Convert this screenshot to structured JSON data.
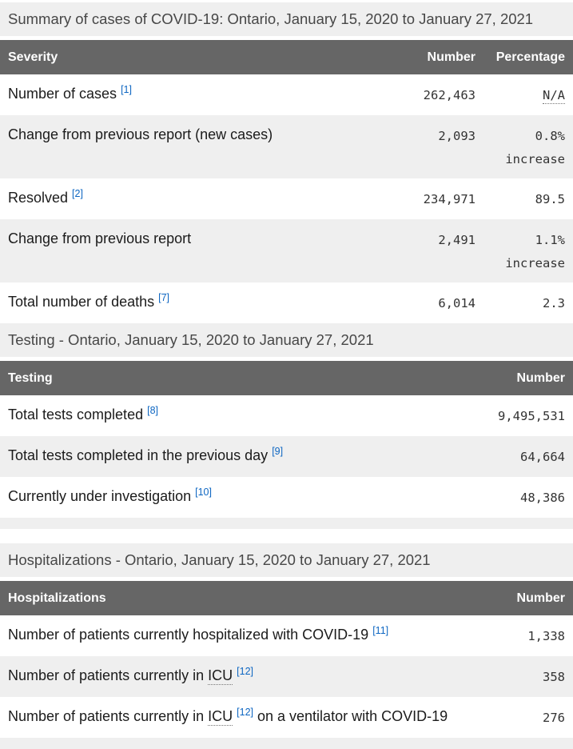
{
  "colors": {
    "caption_bg": "#efefef",
    "caption_text": "#474747",
    "header_bg": "#666666",
    "header_text": "#ffffff",
    "stripe_bg": "#efefef",
    "label_text": "#1b1b1b",
    "number_text": "#333333",
    "link": "#0d66c2"
  },
  "tables": [
    {
      "name": "summary-of-cases",
      "caption": "Summary of cases of COVID-19: Ontario, January 15, 2020 to January 27, 2021",
      "headers": [
        {
          "label": "Severity",
          "align": "left",
          "kind": "label"
        },
        {
          "label": "Number",
          "align": "right",
          "kind": "num1"
        },
        {
          "label": "Percentage",
          "align": "right",
          "kind": "pct"
        }
      ],
      "rows": [
        {
          "label_parts": [
            {
              "t": "text",
              "v": "Number of cases "
            },
            {
              "t": "sup",
              "v": "[1]"
            }
          ],
          "number": "262,463",
          "percentage_lines": [
            {
              "v": "N/A",
              "abbr": true
            }
          ]
        },
        {
          "label_parts": [
            {
              "t": "text",
              "v": "Change from previous report (new cases)"
            }
          ],
          "number": "2,093",
          "percentage_lines": [
            {
              "v": "0.8%"
            },
            {
              "v": "increase"
            }
          ]
        },
        {
          "label_parts": [
            {
              "t": "text",
              "v": "Resolved "
            },
            {
              "t": "sup",
              "v": "[2]"
            }
          ],
          "number": "234,971",
          "percentage_lines": [
            {
              "v": "89.5"
            }
          ]
        },
        {
          "label_parts": [
            {
              "t": "text",
              "v": "Change from previous report"
            }
          ],
          "number": "2,491",
          "percentage_lines": [
            {
              "v": "1.1%"
            },
            {
              "v": "increase"
            }
          ]
        },
        {
          "label_parts": [
            {
              "t": "text",
              "v": "Total number of deaths "
            },
            {
              "t": "sup",
              "v": "[7]"
            }
          ],
          "number": "6,014",
          "percentage_lines": [
            {
              "v": "2.3"
            }
          ]
        }
      ],
      "bottom_strip": false
    },
    {
      "name": "testing",
      "caption": "Testing - Ontario, January 15, 2020 to January 27, 2021",
      "headers": [
        {
          "label": "Testing",
          "align": "left",
          "kind": "label"
        },
        {
          "label": "Number",
          "align": "right",
          "kind": "num2"
        }
      ],
      "rows": [
        {
          "label_parts": [
            {
              "t": "text",
              "v": "Total tests completed "
            },
            {
              "t": "sup",
              "v": "[8]"
            }
          ],
          "number": "9,495,531"
        },
        {
          "label_parts": [
            {
              "t": "text",
              "v": "Total tests completed in the previous day "
            },
            {
              "t": "sup",
              "v": "[9]"
            }
          ],
          "number": "64,664"
        },
        {
          "label_parts": [
            {
              "t": "text",
              "v": "Currently under investigation "
            },
            {
              "t": "sup",
              "v": "[10]"
            }
          ],
          "number": "48,386"
        }
      ],
      "bottom_strip": true
    },
    {
      "name": "hospitalizations",
      "caption": "Hospitalizations - Ontario, January 15, 2020 to January 27, 2021",
      "headers": [
        {
          "label": "Hospitalizations",
          "align": "left",
          "kind": "label"
        },
        {
          "label": "Number",
          "align": "right",
          "kind": "num2"
        }
      ],
      "rows": [
        {
          "label_parts": [
            {
              "t": "text",
              "v": "Number of patients currently hospitalized with COVID-19 "
            },
            {
              "t": "sup",
              "v": "[11]"
            }
          ],
          "number": "1,338"
        },
        {
          "label_parts": [
            {
              "t": "text",
              "v": "Number of patients currently in "
            },
            {
              "t": "abbr",
              "v": "ICU"
            },
            {
              "t": "text",
              "v": " "
            },
            {
              "t": "sup",
              "v": "[12]"
            }
          ],
          "number": "358"
        },
        {
          "label_parts": [
            {
              "t": "text",
              "v": "Number of patients currently in "
            },
            {
              "t": "abbr",
              "v": "ICU"
            },
            {
              "t": "text",
              "v": " "
            },
            {
              "t": "sup",
              "v": "[12]"
            },
            {
              "t": "text",
              "v": " on a ventilator with COVID-19"
            }
          ],
          "number": "276"
        }
      ],
      "bottom_strip": true
    }
  ]
}
